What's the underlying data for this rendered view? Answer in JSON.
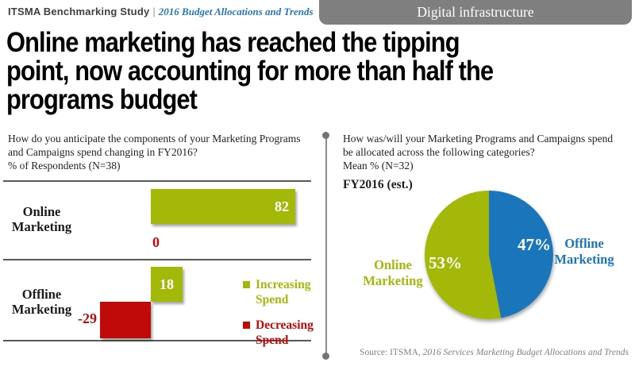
{
  "header": {
    "brand": "ITSMA Benchmarking Study",
    "divider": "|",
    "report": "2016 Budget Allocations and Trends",
    "tab": "Digital infrastructure"
  },
  "title": "Online marketing has reached the tipping\npoint, now accounting for more than half the\nprograms budget",
  "bar_panel": {
    "question": "How do you anticipate the components of your Marketing Programs and Campaigns spend changing in FY2016?",
    "respondents": "% of Respondents (N=38)",
    "rows": [
      {
        "label": "Online Marketing",
        "increase_label": "82",
        "decrease_label": "0"
      },
      {
        "label": "Offline Marketing",
        "increase_label": "18",
        "decrease_label": "-29"
      }
    ],
    "legend": [
      {
        "label": "Increasing Spend",
        "color": "#a3b808"
      },
      {
        "label": "Decreasing Spend",
        "color": "#c00a0a"
      }
    ]
  },
  "pie_panel": {
    "question": "How was/will your Marketing Programs and Campaigns spend be allocated across the following categories?",
    "respondents": "Mean % (N=32)",
    "period": "FY2016 (est.)",
    "slices": [
      {
        "label": "Offline Marketing",
        "pct_label": "47%",
        "value": 47,
        "color": "#1b75bb"
      },
      {
        "label": "Online Marketing",
        "pct_label": "53%",
        "value": 53,
        "color": "#a3b808"
      }
    ]
  },
  "source": {
    "prefix": "Source: ITSMA, ",
    "title_italic": "2016 Services Marketing Budget Allocations and Trends"
  },
  "colors": {
    "green": "#a3b808",
    "red": "#c00a0a",
    "blue": "#1b75bb",
    "tab_gray": "#7f7f7f"
  },
  "chart_data": [
    {
      "type": "bar",
      "orientation": "horizontal",
      "title": "How do you anticipate the components of your Marketing Programs and Campaigns spend changing in FY2016?",
      "subtitle": "% of Respondents (N=38)",
      "categories": [
        "Online Marketing",
        "Offline Marketing"
      ],
      "series": [
        {
          "name": "Increasing Spend",
          "values": [
            82,
            18
          ],
          "color": "#a3b808"
        },
        {
          "name": "Decreasing Spend",
          "values": [
            0,
            -29
          ],
          "color": "#c00a0a"
        }
      ],
      "xlim": [
        -40,
        95
      ],
      "grid": false,
      "legend_position": "right",
      "value_labels": true
    },
    {
      "type": "pie",
      "title": "Marketing Programs and Campaigns spend allocation, FY2016 (est.), Mean % (N=32)",
      "labels": [
        "Offline Marketing",
        "Online Marketing"
      ],
      "values": [
        47,
        53
      ],
      "colors": [
        "#1b75bb",
        "#a3b808"
      ],
      "start_angle": "12 o'clock",
      "direction": "clockwise",
      "legend_position": "sides"
    }
  ]
}
